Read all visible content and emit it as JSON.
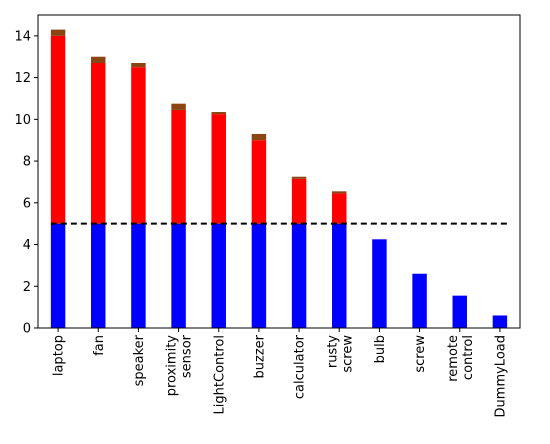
{
  "chart_data": {
    "type": "bar",
    "stacked": true,
    "categories": [
      "laptop",
      "fan",
      "speaker",
      "proximity sensor",
      "LightControl",
      "buzzer",
      "calculator",
      "rusty screw",
      "bulb",
      "screw",
      "remote control",
      "DummyLoad"
    ],
    "category_lines": [
      [
        "laptop"
      ],
      [
        "fan"
      ],
      [
        "speaker"
      ],
      [
        "proximity",
        "sensor"
      ],
      [
        "LightControl"
      ],
      [
        "buzzer"
      ],
      [
        "calculator"
      ],
      [
        "rusty",
        "screw"
      ],
      [
        "bulb"
      ],
      [
        "screw"
      ],
      [
        "remote",
        "control"
      ],
      [
        "DummyLoad"
      ]
    ],
    "series": [
      {
        "color": "#0000ff",
        "values": [
          5,
          5,
          5,
          5,
          5,
          5,
          5,
          5,
          4.25,
          2.6,
          1.55,
          0.6
        ]
      },
      {
        "color": "#ff0000",
        "values": [
          9.0,
          7.7,
          7.5,
          5.45,
          5.25,
          4.0,
          2.15,
          1.45,
          0,
          0,
          0,
          0
        ]
      }
    ],
    "cap_color": "#8b4513",
    "cap_values": [
      0.3,
      0.3,
      0.2,
      0.3,
      0.1,
      0.3,
      0.1,
      0.1,
      0,
      0,
      0,
      0
    ],
    "threshold": {
      "value": 5,
      "style": "dashed",
      "color": "#000000"
    },
    "yticks": [
      0,
      2,
      4,
      6,
      8,
      10,
      12,
      14
    ],
    "ylim": [
      0,
      15
    ],
    "grid": false,
    "title": "",
    "xlabel": "",
    "ylabel": ""
  }
}
